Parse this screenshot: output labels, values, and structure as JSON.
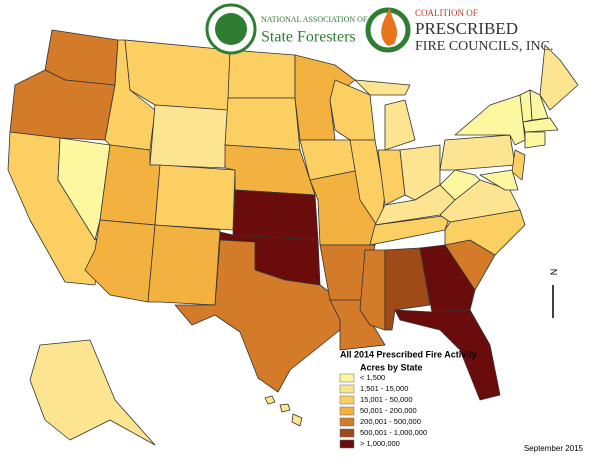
{
  "logos": {
    "nasf": {
      "line1": "NATIONAL ASSOCIATION OF",
      "line2": "State Foresters"
    },
    "ccpfc": {
      "line1": "COALITION OF",
      "line2": "PRESCRIBED",
      "line3": "FIRE COUNCILS, INC."
    }
  },
  "legend": {
    "title": "All 2014 Prescribed Fire Activity",
    "subtitle": "Acres by State",
    "items": [
      {
        "label": "< 1,500",
        "color": "#fdf7a0"
      },
      {
        "label": "1,501 - 15,000",
        "color": "#fde490"
      },
      {
        "label": "15,001 - 50,000",
        "color": "#fccf62"
      },
      {
        "label": "50,001 - 200,000",
        "color": "#f3b140"
      },
      {
        "label": "200,001 - 500,000",
        "color": "#d47b2a"
      },
      {
        "label": "500,001 - 1,000,000",
        "color": "#9e4b18"
      },
      {
        "label": "> 1,000,000",
        "color": "#6b0c0c"
      }
    ]
  },
  "compass": "N",
  "date": "September 2015"
}
